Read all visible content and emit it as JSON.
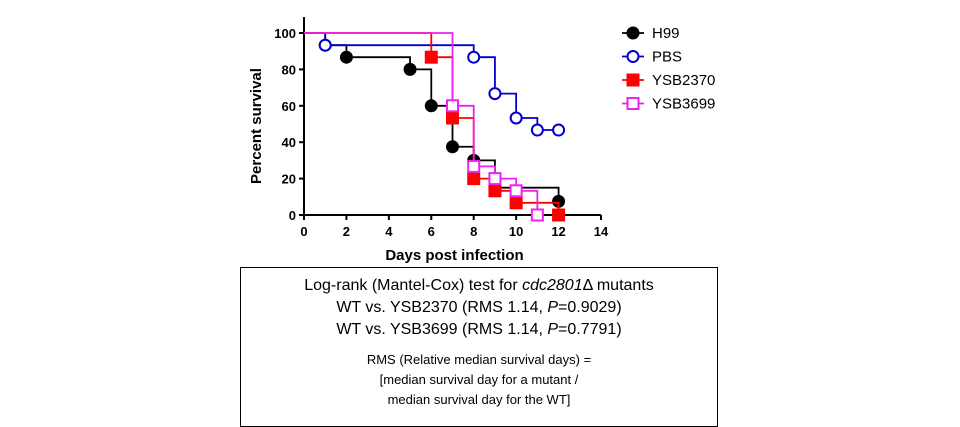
{
  "chart_data": {
    "type": "line",
    "step": true,
    "xlabel": "Days post infection",
    "ylabel": "Percent survival",
    "xlim": [
      0,
      14
    ],
    "ylim": [
      0,
      100
    ],
    "x_ticks": [
      0,
      2,
      4,
      6,
      8,
      10,
      12,
      14
    ],
    "y_ticks": [
      0,
      20,
      40,
      60,
      80,
      100
    ],
    "grid": false,
    "legend_position": "right",
    "series": [
      {
        "name": "H99",
        "color": "#000000",
        "marker": "filled-circle",
        "points": [
          [
            1,
            93.3
          ],
          [
            2,
            86.7
          ],
          [
            5,
            80
          ],
          [
            6,
            60
          ],
          [
            7,
            37.5
          ],
          [
            8,
            30
          ],
          [
            9,
            15
          ],
          [
            12,
            7.5
          ]
        ]
      },
      {
        "name": "PBS",
        "color": "#0000cc",
        "marker": "open-circle",
        "points": [
          [
            1,
            93.3
          ],
          [
            8,
            86.7
          ],
          [
            9,
            66.7
          ],
          [
            10,
            53.3
          ],
          [
            11,
            46.7
          ],
          [
            12,
            46.7
          ]
        ]
      },
      {
        "name": "YSB2370",
        "color": "#ff0000",
        "marker": "filled-square",
        "points": [
          [
            6,
            86.7
          ],
          [
            7,
            53.3
          ],
          [
            8,
            20
          ],
          [
            9,
            13.3
          ],
          [
            10,
            6.7
          ],
          [
            12,
            0
          ]
        ]
      },
      {
        "name": "YSB3699",
        "color": "#ee22ee",
        "marker": "open-square",
        "points": [
          [
            7,
            60
          ],
          [
            8,
            26.7
          ],
          [
            9,
            20
          ],
          [
            10,
            13.3
          ],
          [
            11,
            0
          ]
        ]
      }
    ]
  },
  "stats": {
    "title_prefix": "Log-rank (Mantel-Cox) test for ",
    "title_gene": "cdc2801",
    "title_suffix": "Δ mutants",
    "c1_pre": "WT vs. YSB2370 (RMS 1.14, ",
    "c1_p": "P",
    "c1_post": "=0.9029)",
    "c2_pre": "WT vs. YSB3699 (RMS 1.14, ",
    "c2_p": "P",
    "c2_post": "=0.7791)",
    "rms_line1": "RMS (Relative median survival days) =",
    "rms_line2": "[median survival day for a mutant  /",
    "rms_line3": "median survival day for the WT]"
  }
}
